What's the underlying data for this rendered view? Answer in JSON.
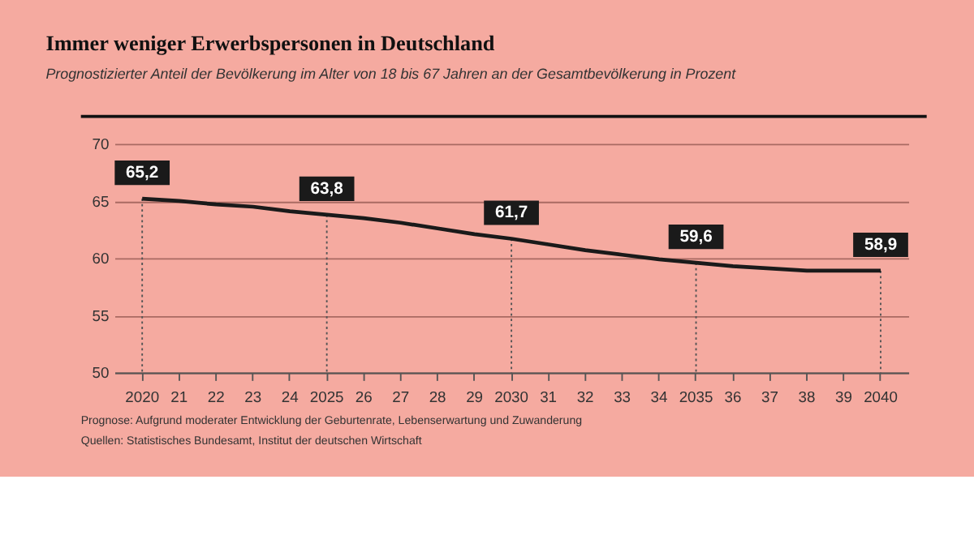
{
  "chart_data": {
    "type": "line",
    "title": "Immer weniger Erwerbspersonen in Deutschland",
    "subtitle": "Prognostizierter Anteil der Bevölkerung im Alter von 18 bis 67 Jahren an der Gesamtbevölkerung in Prozent",
    "categories": [
      "2020",
      "21",
      "22",
      "23",
      "24",
      "2025",
      "26",
      "27",
      "28",
      "29",
      "2030",
      "31",
      "32",
      "33",
      "34",
      "2035",
      "36",
      "37",
      "38",
      "39",
      "2040"
    ],
    "series": [
      {
        "color": "#1a1a1a",
        "values": [
          65.2,
          65.0,
          64.7,
          64.5,
          64.1,
          63.8,
          63.5,
          63.1,
          62.6,
          62.1,
          61.7,
          61.2,
          60.7,
          60.3,
          59.9,
          59.6,
          59.3,
          59.1,
          58.9,
          58.9,
          58.9
        ],
        "value_labels": [
          "65,2",
          null,
          null,
          null,
          null,
          "63,8",
          null,
          null,
          null,
          null,
          "61,7",
          null,
          null,
          null,
          null,
          "59,6",
          null,
          null,
          null,
          null,
          "58,9"
        ]
      }
    ],
    "ylim": [
      50,
      70
    ],
    "yticks": [
      50,
      55,
      60,
      65,
      70
    ],
    "grid": "y",
    "marker": "none",
    "line_style": "solid",
    "annotations": [
      "Prognose: Aufgrund moderater Entwicklung der Geburtenrate, Lebenserwartung und Zuwanderung",
      "Quellen: Statistisches Bundesamt, Institut der deutschen Wirtschaft"
    ]
  }
}
